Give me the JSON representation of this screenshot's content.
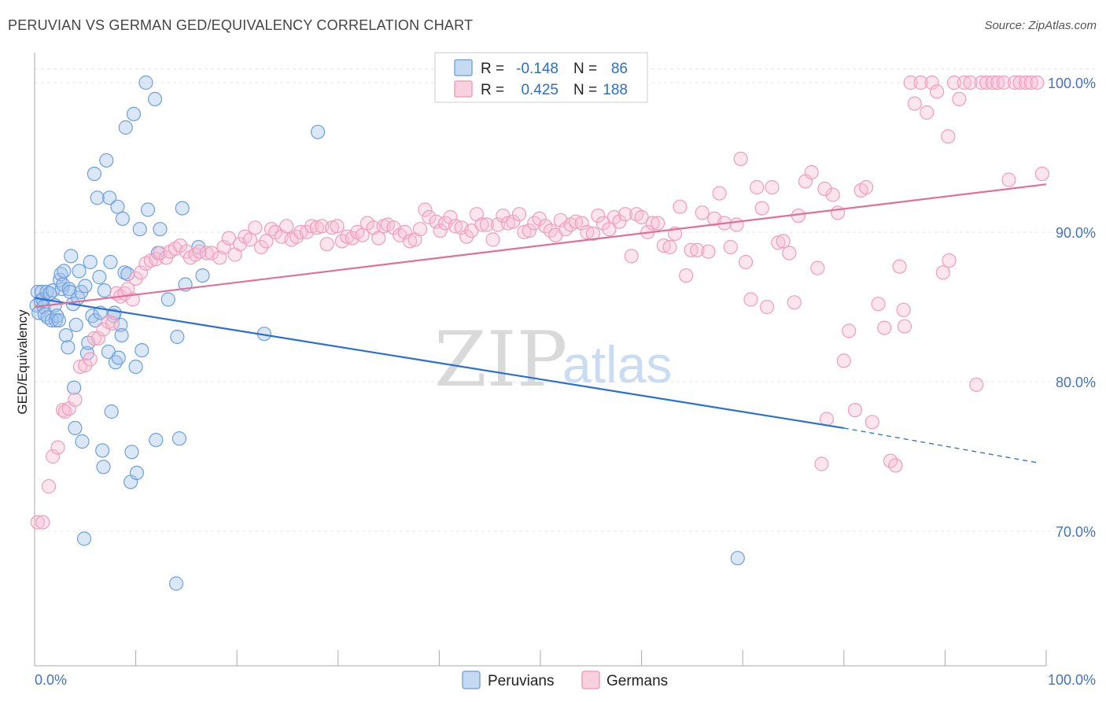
{
  "title": "PERUVIAN VS GERMAN GED/EQUIVALENCY CORRELATION CHART",
  "source": "Source: ZipAtlas.com",
  "watermark": {
    "zip": "ZIP",
    "atlas": "atlas"
  },
  "stats_box": {
    "rows": [
      {
        "r_label": "R =",
        "r_value": "-0.148",
        "n_label": "N =",
        "n_value": "86"
      },
      {
        "r_label": "R =",
        "r_value": "0.425",
        "n_label": "N =",
        "n_value": "188"
      }
    ]
  },
  "chart_data": {
    "type": "scatter",
    "title": "PERUVIAN VS GERMAN GED/EQUIVALENCY CORRELATION CHART",
    "xlabel": "",
    "ylabel": "GED/Equivalency",
    "xlim": [
      0,
      100
    ],
    "ylim": [
      61,
      102
    ],
    "x_tick_labels": [
      "0.0%",
      "100.0%"
    ],
    "y_ticks": [
      70,
      80,
      90,
      100
    ],
    "y_tick_labels": [
      "70.0%",
      "80.0%",
      "90.0%",
      "100.0%"
    ],
    "grid": true,
    "legend_position": "bottom-center",
    "colors": {
      "Peruvians": "#7aa7e0",
      "Peruvians_line": "#2a6fd1",
      "Germans": "#f0a0bb",
      "Germans_line": "#e0709a",
      "axis_text": "#4472c4"
    },
    "series": [
      {
        "name": "Peruvians",
        "r": -0.148,
        "n": 86,
        "trend": {
          "x0": 0,
          "y0": 85.6,
          "x1": 80,
          "y1": 76.9,
          "dash_to_x": 99,
          "dash_to_y": 74.6
        },
        "points": [
          [
            0.2,
            85.1
          ],
          [
            0.3,
            86.0
          ],
          [
            0.4,
            84.6
          ],
          [
            0.6,
            85.4
          ],
          [
            0.7,
            86.0
          ],
          [
            0.8,
            85.5
          ],
          [
            0.9,
            85.0
          ],
          [
            1.0,
            84.5
          ],
          [
            1.2,
            86.0
          ],
          [
            1.3,
            84.3
          ],
          [
            1.5,
            85.9
          ],
          [
            1.7,
            84.1
          ],
          [
            1.8,
            86.1
          ],
          [
            2.0,
            85.1
          ],
          [
            2.1,
            84.1
          ],
          [
            2.2,
            84.4
          ],
          [
            2.4,
            84.1
          ],
          [
            2.5,
            86.8
          ],
          [
            2.6,
            87.2
          ],
          [
            2.7,
            86.2
          ],
          [
            2.8,
            86.5
          ],
          [
            2.9,
            87.4
          ],
          [
            3.1,
            83.1
          ],
          [
            3.3,
            82.3
          ],
          [
            3.4,
            86.2
          ],
          [
            3.5,
            86.0
          ],
          [
            3.6,
            88.4
          ],
          [
            3.8,
            85.2
          ],
          [
            3.9,
            79.6
          ],
          [
            4.0,
            76.9
          ],
          [
            4.1,
            83.8
          ],
          [
            4.3,
            85.6
          ],
          [
            4.4,
            87.4
          ],
          [
            4.6,
            86.0
          ],
          [
            4.7,
            76.0
          ],
          [
            4.9,
            69.5
          ],
          [
            5.0,
            86.4
          ],
          [
            5.2,
            81.9
          ],
          [
            5.3,
            82.6
          ],
          [
            5.5,
            88.0
          ],
          [
            5.7,
            84.4
          ],
          [
            5.9,
            93.9
          ],
          [
            6.0,
            84.1
          ],
          [
            6.2,
            92.3
          ],
          [
            6.4,
            87.0
          ],
          [
            6.5,
            84.6
          ],
          [
            6.7,
            75.4
          ],
          [
            6.8,
            74.3
          ],
          [
            6.9,
            86.1
          ],
          [
            7.1,
            94.8
          ],
          [
            7.3,
            82.0
          ],
          [
            7.4,
            92.3
          ],
          [
            7.5,
            88.0
          ],
          [
            7.6,
            78.0
          ],
          [
            7.8,
            84.4
          ],
          [
            7.9,
            84.6
          ],
          [
            8.0,
            81.3
          ],
          [
            8.2,
            91.7
          ],
          [
            8.3,
            81.6
          ],
          [
            8.5,
            83.8
          ],
          [
            8.6,
            83.1
          ],
          [
            8.7,
            90.9
          ],
          [
            8.9,
            87.3
          ],
          [
            9.0,
            97.0
          ],
          [
            9.2,
            87.2
          ],
          [
            9.5,
            73.3
          ],
          [
            9.6,
            75.3
          ],
          [
            9.8,
            97.9
          ],
          [
            10.0,
            81.0
          ],
          [
            10.1,
            73.9
          ],
          [
            10.4,
            90.2
          ],
          [
            10.6,
            82.1
          ],
          [
            11.0,
            100.0
          ],
          [
            11.2,
            91.5
          ],
          [
            11.9,
            98.9
          ],
          [
            12.0,
            76.1
          ],
          [
            12.2,
            88.6
          ],
          [
            12.4,
            90.2
          ],
          [
            13.2,
            85.5
          ],
          [
            14.0,
            66.5
          ],
          [
            14.1,
            83.0
          ],
          [
            14.3,
            76.2
          ],
          [
            14.6,
            91.6
          ],
          [
            14.9,
            86.5
          ],
          [
            16.2,
            89.0
          ],
          [
            16.6,
            87.1
          ],
          [
            22.7,
            83.2
          ],
          [
            28.0,
            96.7
          ],
          [
            69.5,
            68.2
          ]
        ]
      },
      {
        "name": "Germans",
        "r": 0.425,
        "n": 188,
        "trend": {
          "x0": 0,
          "y0": 85.0,
          "x1": 100,
          "y1": 93.2
        },
        "points": [
          [
            0.3,
            70.6
          ],
          [
            0.8,
            70.6
          ],
          [
            1.4,
            73.0
          ],
          [
            1.8,
            75.0
          ],
          [
            2.3,
            75.6
          ],
          [
            2.8,
            78.1
          ],
          [
            3.0,
            78.0
          ],
          [
            3.4,
            78.2
          ],
          [
            4.0,
            78.8
          ],
          [
            4.5,
            81.0
          ],
          [
            5.0,
            81.1
          ],
          [
            5.5,
            81.5
          ],
          [
            5.9,
            82.9
          ],
          [
            6.3,
            82.9
          ],
          [
            6.8,
            83.5
          ],
          [
            7.3,
            84.0
          ],
          [
            7.7,
            83.9
          ],
          [
            8.1,
            85.9
          ],
          [
            8.5,
            85.7
          ],
          [
            8.9,
            85.9
          ],
          [
            9.2,
            86.2
          ],
          [
            9.7,
            85.5
          ],
          [
            10.0,
            86.9
          ],
          [
            10.5,
            87.3
          ],
          [
            11.0,
            87.9
          ],
          [
            11.5,
            88.1
          ],
          [
            12.0,
            88.2
          ],
          [
            12.4,
            88.6
          ],
          [
            13.0,
            88.3
          ],
          [
            13.4,
            88.7
          ],
          [
            13.9,
            88.9
          ],
          [
            14.4,
            89.1
          ],
          [
            15.0,
            88.7
          ],
          [
            15.4,
            88.3
          ],
          [
            15.9,
            88.5
          ],
          [
            16.3,
            88.7
          ],
          [
            17.0,
            88.6
          ],
          [
            17.5,
            88.6
          ],
          [
            18.3,
            88.3
          ],
          [
            18.7,
            89.0
          ],
          [
            19.2,
            89.6
          ],
          [
            19.8,
            88.5
          ],
          [
            20.3,
            89.2
          ],
          [
            20.8,
            89.7
          ],
          [
            21.3,
            89.5
          ],
          [
            21.8,
            90.3
          ],
          [
            22.4,
            89.0
          ],
          [
            22.9,
            89.4
          ],
          [
            23.4,
            90.2
          ],
          [
            23.8,
            90.0
          ],
          [
            24.4,
            89.7
          ],
          [
            24.9,
            90.4
          ],
          [
            25.4,
            89.5
          ],
          [
            25.9,
            89.7
          ],
          [
            26.3,
            90.0
          ],
          [
            26.9,
            90.0
          ],
          [
            27.4,
            90.4
          ],
          [
            27.9,
            90.3
          ],
          [
            28.4,
            90.4
          ],
          [
            28.9,
            89.2
          ],
          [
            29.4,
            90.3
          ],
          [
            29.9,
            90.4
          ],
          [
            30.4,
            89.4
          ],
          [
            30.9,
            89.7
          ],
          [
            31.4,
            89.6
          ],
          [
            31.9,
            90.0
          ],
          [
            32.4,
            89.8
          ],
          [
            32.9,
            90.6
          ],
          [
            33.5,
            90.3
          ],
          [
            34.0,
            89.6
          ],
          [
            34.5,
            90.4
          ],
          [
            34.9,
            90.5
          ],
          [
            35.5,
            90.3
          ],
          [
            36.1,
            89.8
          ],
          [
            36.6,
            90.0
          ],
          [
            37.1,
            89.4
          ],
          [
            37.6,
            89.5
          ],
          [
            38.1,
            90.2
          ],
          [
            38.6,
            91.5
          ],
          [
            39.0,
            91.0
          ],
          [
            39.7,
            90.7
          ],
          [
            40.1,
            90.1
          ],
          [
            40.6,
            90.6
          ],
          [
            41.1,
            91.0
          ],
          [
            41.6,
            90.4
          ],
          [
            42.2,
            90.3
          ],
          [
            42.7,
            89.7
          ],
          [
            43.2,
            90.1
          ],
          [
            43.7,
            91.2
          ],
          [
            44.2,
            90.5
          ],
          [
            44.7,
            90.5
          ],
          [
            45.3,
            89.5
          ],
          [
            45.8,
            90.5
          ],
          [
            46.3,
            91.1
          ],
          [
            46.8,
            90.6
          ],
          [
            47.3,
            90.7
          ],
          [
            47.9,
            91.2
          ],
          [
            48.4,
            90.0
          ],
          [
            48.9,
            90.1
          ],
          [
            49.4,
            90.6
          ],
          [
            49.9,
            90.9
          ],
          [
            50.5,
            90.4
          ],
          [
            51.0,
            90.1
          ],
          [
            51.5,
            89.8
          ],
          [
            52.0,
            90.8
          ],
          [
            52.5,
            90.2
          ],
          [
            53.0,
            90.5
          ],
          [
            53.5,
            90.7
          ],
          [
            54.1,
            90.6
          ],
          [
            54.6,
            90.0
          ],
          [
            55.2,
            89.9
          ],
          [
            55.7,
            91.1
          ],
          [
            56.2,
            90.6
          ],
          [
            56.8,
            90.2
          ],
          [
            57.3,
            91.0
          ],
          [
            57.8,
            90.7
          ],
          [
            58.4,
            91.2
          ],
          [
            59.0,
            88.4
          ],
          [
            59.5,
            91.2
          ],
          [
            60.0,
            91.0
          ],
          [
            60.6,
            90.0
          ],
          [
            61.1,
            90.6
          ],
          [
            61.6,
            90.6
          ],
          [
            62.2,
            89.1
          ],
          [
            62.8,
            89.0
          ],
          [
            63.3,
            89.9
          ],
          [
            63.8,
            91.7
          ],
          [
            64.4,
            87.1
          ],
          [
            64.9,
            88.8
          ],
          [
            65.5,
            88.8
          ],
          [
            66.0,
            91.3
          ],
          [
            66.6,
            88.7
          ],
          [
            67.2,
            90.9
          ],
          [
            67.7,
            92.6
          ],
          [
            68.2,
            90.6
          ],
          [
            68.8,
            89.0
          ],
          [
            69.4,
            90.5
          ],
          [
            69.8,
            94.9
          ],
          [
            70.3,
            88.0
          ],
          [
            70.8,
            85.5
          ],
          [
            71.4,
            93.0
          ],
          [
            71.9,
            91.6
          ],
          [
            72.4,
            85.0
          ],
          [
            72.9,
            93.0
          ],
          [
            73.5,
            89.3
          ],
          [
            74.0,
            89.4
          ],
          [
            74.6,
            88.6
          ],
          [
            75.1,
            85.3
          ],
          [
            75.5,
            91.1
          ],
          [
            76.2,
            93.4
          ],
          [
            76.8,
            94.0
          ],
          [
            77.4,
            87.6
          ],
          [
            77.8,
            74.5
          ],
          [
            78.3,
            77.5
          ],
          [
            78.9,
            92.5
          ],
          [
            79.4,
            91.3
          ],
          [
            80.0,
            81.4
          ],
          [
            80.5,
            83.4
          ],
          [
            81.1,
            78.1
          ],
          [
            81.7,
            92.8
          ],
          [
            82.2,
            93.0
          ],
          [
            82.8,
            77.3
          ],
          [
            83.4,
            85.2
          ],
          [
            84.0,
            83.6
          ],
          [
            84.6,
            74.7
          ],
          [
            85.1,
            74.4
          ],
          [
            85.5,
            87.7
          ],
          [
            86.0,
            83.7
          ],
          [
            86.6,
            100.0
          ],
          [
            87.0,
            98.6
          ],
          [
            87.6,
            100.0
          ],
          [
            88.2,
            98.0
          ],
          [
            88.7,
            100.0
          ],
          [
            89.2,
            99.4
          ],
          [
            89.8,
            87.3
          ],
          [
            90.3,
            96.4
          ],
          [
            90.9,
            100.0
          ],
          [
            91.4,
            98.9
          ],
          [
            91.9,
            100.0
          ],
          [
            92.5,
            100.0
          ],
          [
            93.1,
            79.8
          ],
          [
            93.6,
            100.0
          ],
          [
            94.1,
            100.0
          ],
          [
            94.7,
            100.0
          ],
          [
            95.2,
            100.0
          ],
          [
            95.8,
            100.0
          ],
          [
            96.3,
            93.5
          ],
          [
            96.9,
            100.0
          ],
          [
            97.4,
            100.0
          ],
          [
            98.0,
            100.0
          ],
          [
            98.5,
            100.0
          ],
          [
            99.1,
            100.0
          ],
          [
            99.6,
            93.9
          ],
          [
            85.9,
            84.8
          ],
          [
            90.4,
            88.1
          ],
          [
            78.1,
            92.9
          ]
        ]
      }
    ]
  },
  "legend": {
    "items": [
      "Peruvians",
      "Germans"
    ]
  }
}
